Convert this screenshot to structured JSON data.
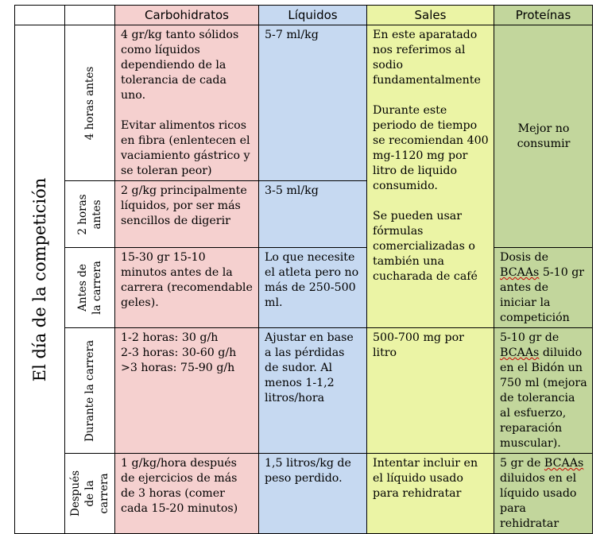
{
  "headers": {
    "carbohidratos": "Carbohidratos",
    "liquidos": "Líquidos",
    "sales": "Sales",
    "proteinas": "Proteínas"
  },
  "side_title": "El día de la competición",
  "rows": {
    "r1": {
      "label": "4 horas antes",
      "carb_1": "4 gr/kg tanto sólidos como líquidos dependiendo de la tolerancia de cada uno.",
      "carb_2": "Evitar alimentos ricos en fibra (enlentecen el vaciamiento gástrico y se toleran peor)",
      "liq": "5-7 ml/kg",
      "pro": "Mejor no consumir"
    },
    "r2": {
      "label_1": "2 horas",
      "label_2": "antes",
      "carb": "2 g/kg principalmente líquidos, por ser más sencillos de digerir",
      "liq": "3-5 ml/kg"
    },
    "sales_merged": {
      "p1": "En este aparatado nos referimos al sodio fundamentalmente",
      "p2": "Durante este periodo de tiempo se recomiendan 400 mg-1120 mg por litro de liquido consumido.",
      "p3": "Se pueden usar fórmulas comercializadas o también una cucharada de café"
    },
    "r3": {
      "label_1": "Antes de",
      "label_2": "la carrera",
      "carb": "15-30 gr 15-10 minutos antes de la carrera (recomendable geles).",
      "liq": "Lo que necesite el atleta pero no más de 250-500 ml.",
      "pro_a": "Dosis de",
      "pro_b": "BCAAs",
      "pro_c": "5-10 gr antes de iniciar la competición"
    },
    "r4": {
      "label": "Durante la carrera",
      "carb_1": "1-2 horas: 30 g/h",
      "carb_2": "2-3 horas: 30-60 g/h",
      "carb_3": ">3 horas: 75-90 g/h",
      "liq": "Ajustar en base a las pérdidas de sudor. Al menos 1-1,2 litros/hora",
      "sal": "500-700 mg por litro",
      "pro_a": "5-10 gr de",
      "pro_b": "BCAAs",
      "pro_c": "diluido en el Bidón un 750 ml (mejora de tolerancia al esfuerzo, reparación muscular)."
    },
    "r5": {
      "label_1": "Después",
      "label_2": "de la",
      "label_3": "carrera",
      "carb": "1 g/kg/hora después de ejercicios de más de 3 horas (comer cada 15-20 minutos)",
      "liq": "1,5 litros/kg de peso perdido.",
      "sal": "Intentar incluir en el líquido usado para rehidratar",
      "pro_a": "5 gr de",
      "pro_b": "BCAAs",
      "pro_c": "diluidos en el líquido usado para rehidratar"
    }
  }
}
